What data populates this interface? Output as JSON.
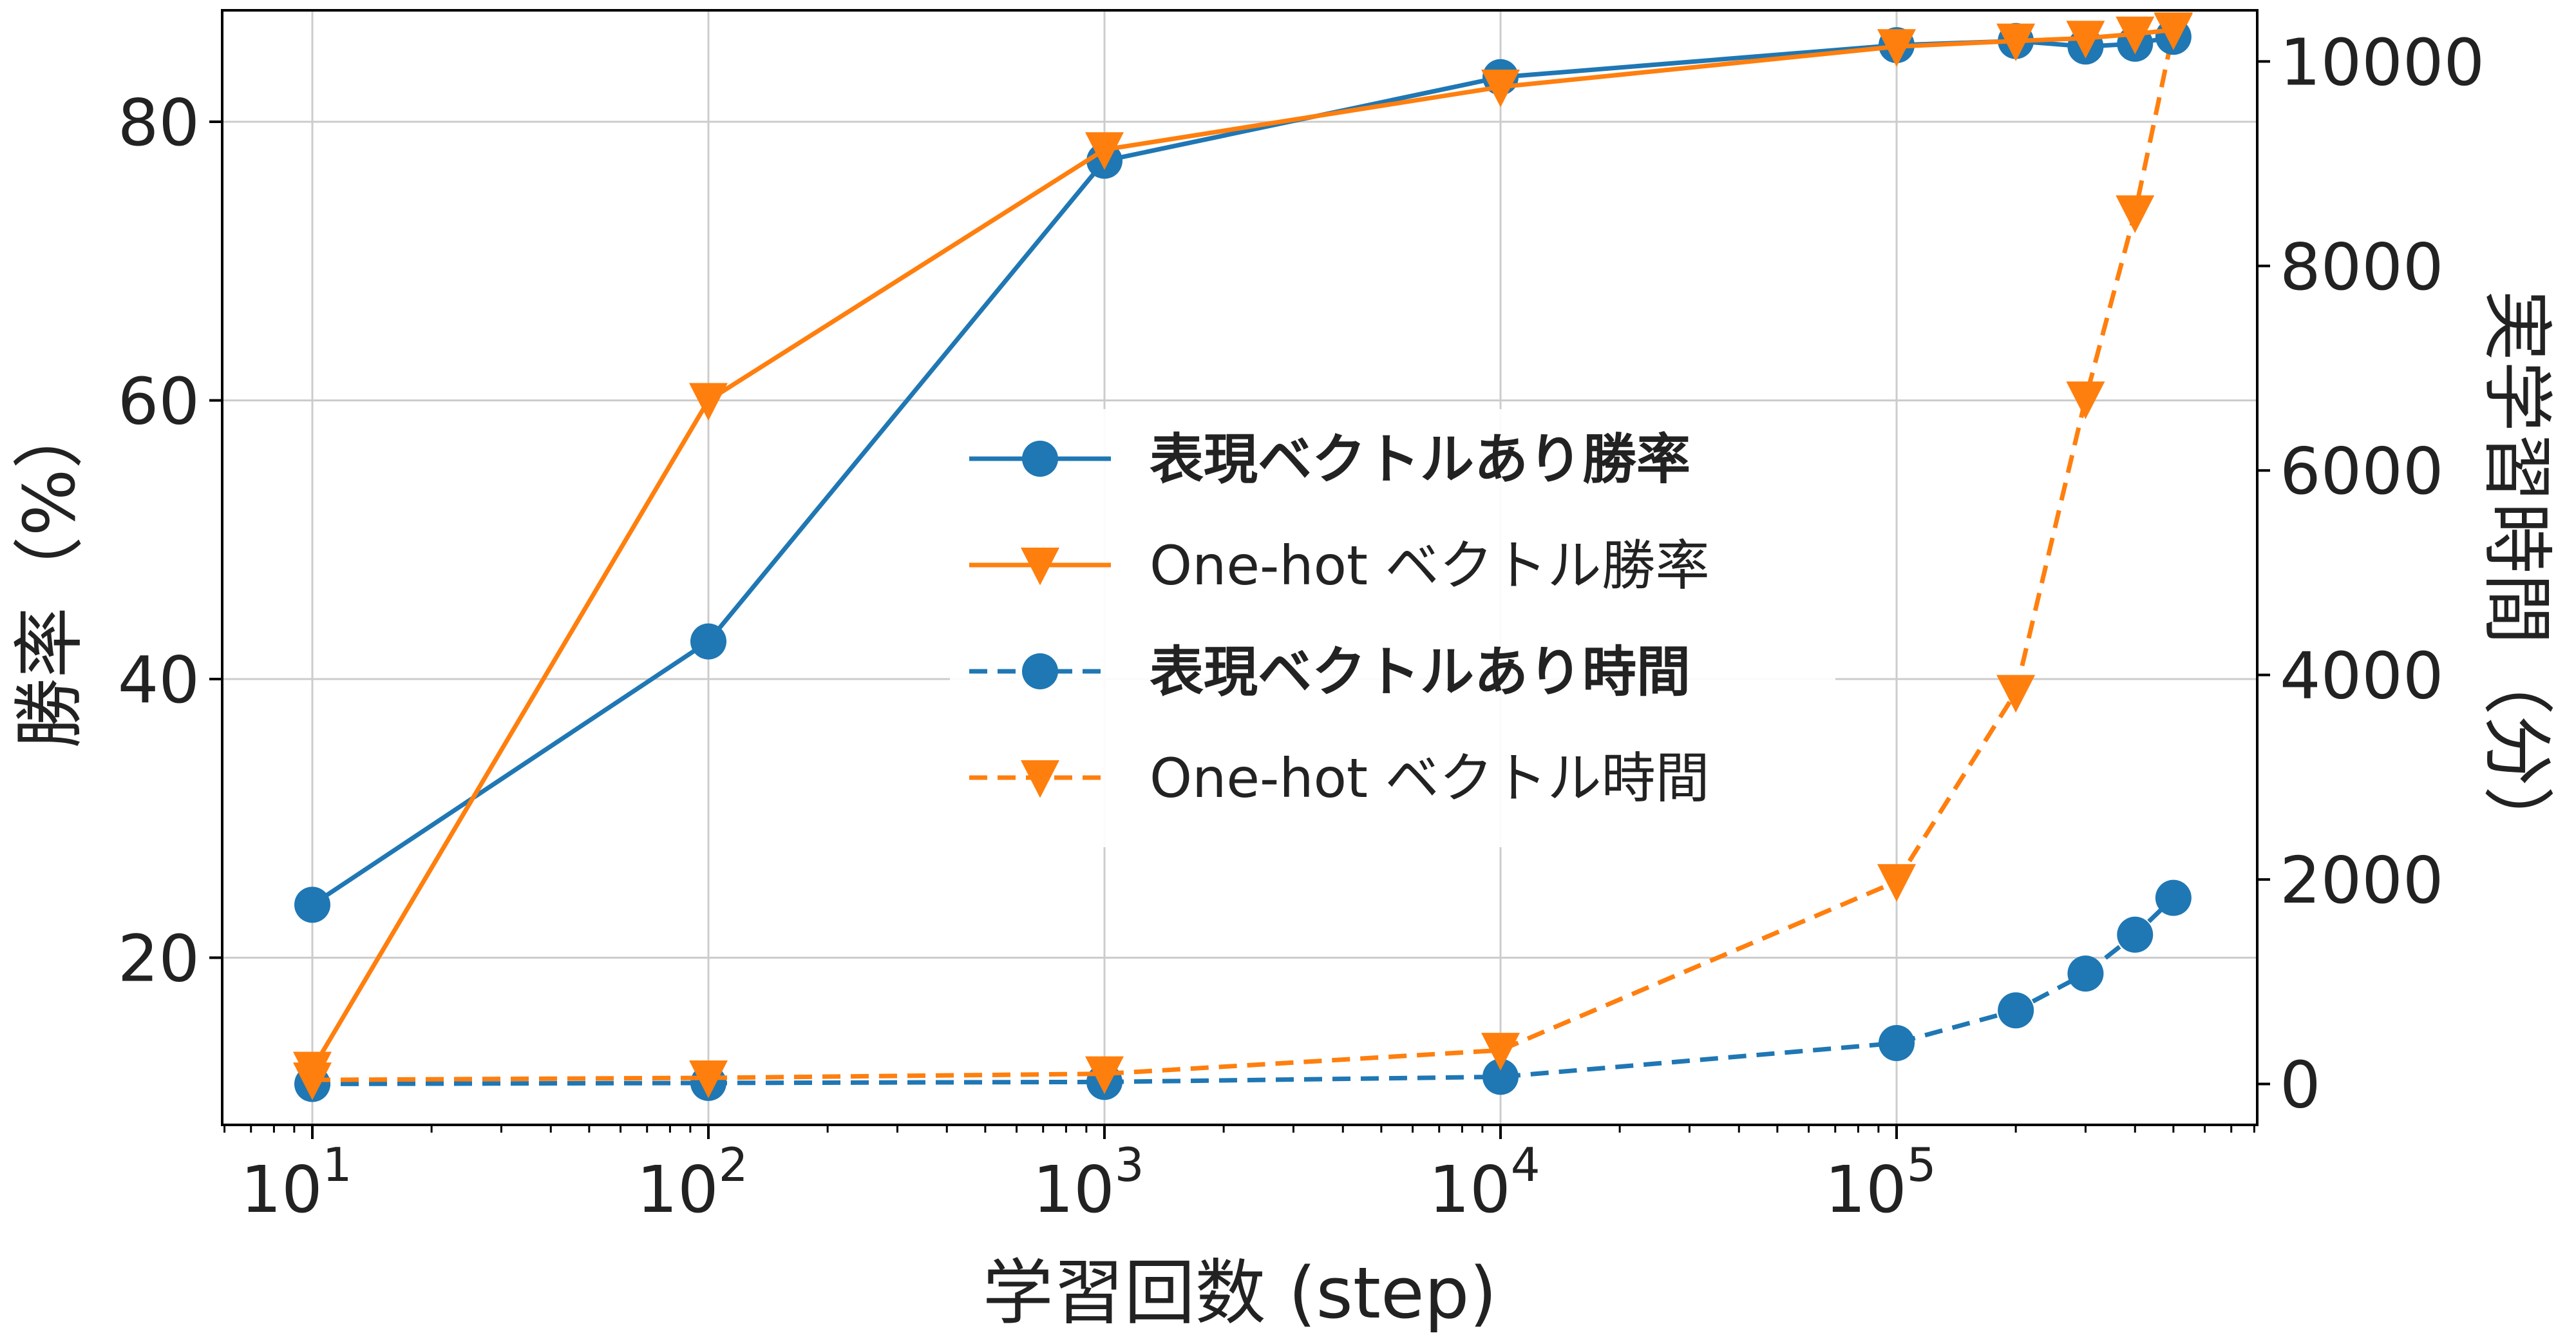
{
  "chart_data": {
    "type": "line",
    "xlabel": "学習回数 (step)",
    "ylabel_left": "勝率（%）",
    "ylabel_right": "実学習時間（分）",
    "x_scale": "log",
    "x": [
      10,
      100,
      1000,
      10000,
      100000,
      200000,
      300000,
      400000,
      500000
    ],
    "x_ticks": [
      {
        "value": 10,
        "base": "10",
        "exp": "1"
      },
      {
        "value": 100,
        "base": "10",
        "exp": "2"
      },
      {
        "value": 1000,
        "base": "10",
        "exp": "3"
      },
      {
        "value": 10000,
        "base": "10",
        "exp": "4"
      },
      {
        "value": 100000,
        "base": "10",
        "exp": "5"
      }
    ],
    "ylim_left": [
      8,
      88
    ],
    "yticks_left": [
      20,
      40,
      60,
      80
    ],
    "ylim_right": [
      -400,
      10500
    ],
    "yticks_right": [
      0,
      2000,
      4000,
      6000,
      8000,
      10000
    ],
    "grid": true,
    "legend_position": "center",
    "series": [
      {
        "name": "表現ベクトルあり勝率",
        "axis": "left",
        "style": "solid",
        "marker": "circle",
        "color": "#1f77b4",
        "bold": true,
        "values": [
          23.8,
          42.7,
          77.2,
          83.2,
          85.5,
          85.8,
          85.4,
          85.6,
          86.1
        ]
      },
      {
        "name": "One-hot ベクトル勝率",
        "axis": "left",
        "style": "solid",
        "marker": "triangle-down",
        "color": "#ff7f0e",
        "bold": false,
        "values": [
          12.0,
          60.0,
          78.0,
          82.5,
          85.4,
          85.8,
          86.0,
          86.3,
          86.6
        ]
      },
      {
        "name": "表現ベクトルあり時間",
        "axis": "right",
        "style": "dashed",
        "marker": "circle",
        "color": "#1f77b4",
        "bold": true,
        "values": [
          0,
          10,
          20,
          70,
          400,
          720,
          1080,
          1460,
          1820
        ]
      },
      {
        "name": "One-hot ベクトル時間",
        "axis": "right",
        "style": "dashed",
        "marker": "triangle-down",
        "color": "#ff7f0e",
        "bold": false,
        "values": [
          40,
          60,
          100,
          330,
          1980,
          3830,
          6700,
          8520,
          10300
        ]
      }
    ]
  }
}
